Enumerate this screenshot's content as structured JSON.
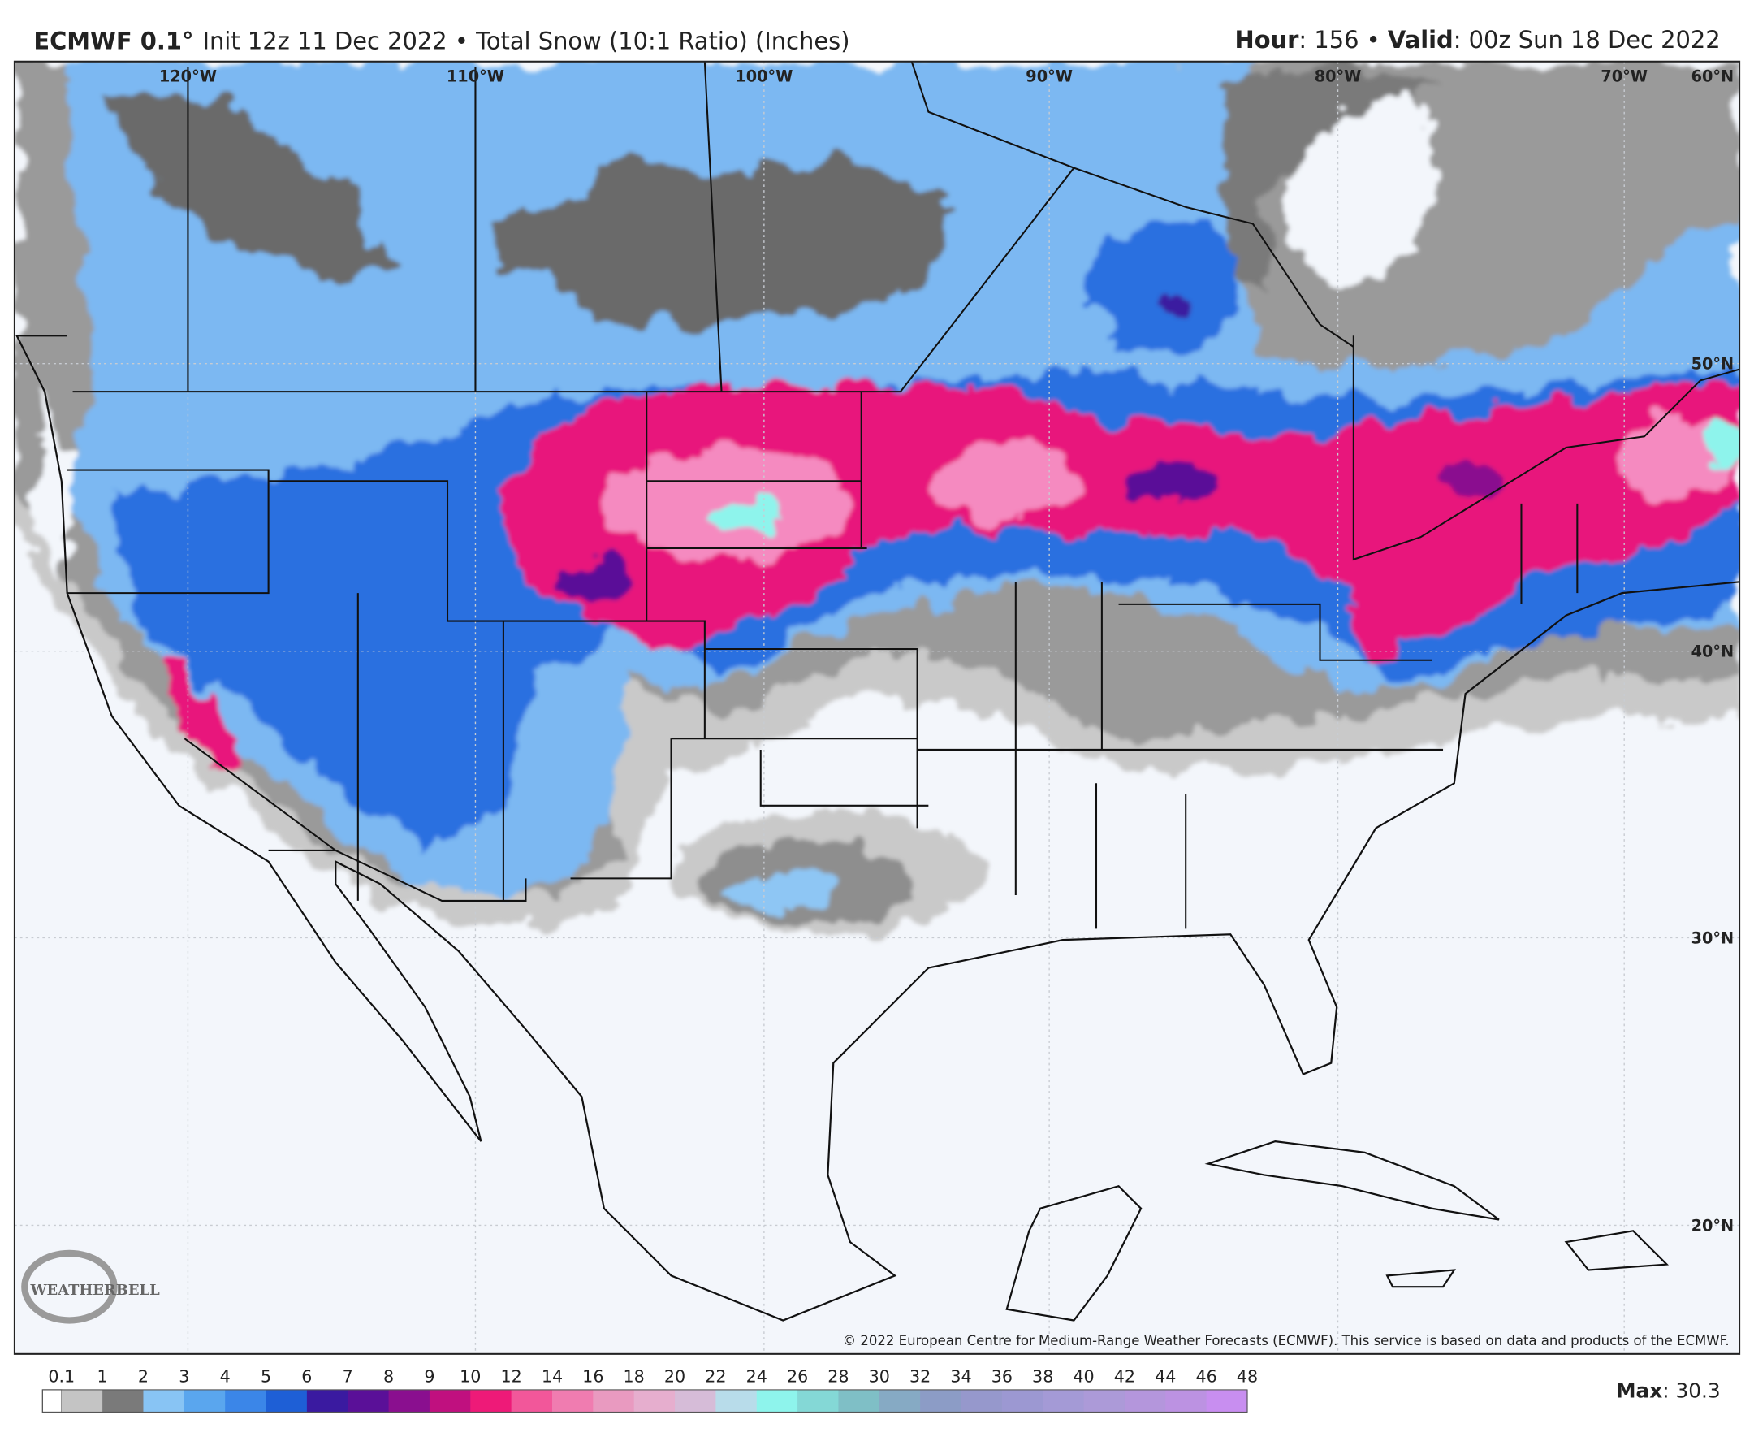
{
  "header": {
    "model": "ECMWF 0.1°",
    "description": "Init 12z 11 Dec 2022 • Total Snow (10:1 Ratio) (Inches)",
    "hour_label": "Hour",
    "hour_value": ": 156 • ",
    "valid_label": "Valid",
    "valid_value": ": 00z Sun 18 Dec 2022"
  },
  "map": {
    "longitude_labels": [
      "120°W",
      "110°W",
      "100°W",
      "90°W",
      "80°W",
      "70°W"
    ],
    "latitude_labels": [
      "60°N",
      "50°N",
      "40°N",
      "30°N",
      "20°N"
    ],
    "copyright": "© 2022 European Centre for Medium-Range Weather Forecasts (ECMWF). This service is based on data and products of the ECMWF.",
    "logo": "WEATHERBELL"
  },
  "colorbar": {
    "labels": [
      0.1,
      1,
      2,
      3,
      4,
      5,
      6,
      7,
      8,
      9,
      10,
      12,
      14,
      16,
      18,
      20,
      22,
      24,
      26,
      28,
      30,
      32,
      34,
      36,
      38,
      40,
      42,
      44,
      46,
      48
    ],
    "colors": [
      "#c4c4c4",
      "#7a7a7a",
      "#88c4f4",
      "#5aa6ee",
      "#3b86e8",
      "#1e5fd6",
      "#3a1aa0",
      "#5a1098",
      "#8a0f8f",
      "#c0107f",
      "#ee1a78",
      "#f2579a",
      "#f07cb0",
      "#e99ac0",
      "#e6aece",
      "#d6bcd8",
      "#b8dcea",
      "#8ef4ec",
      "#84d8d6",
      "#7fbfc6",
      "#86aac4",
      "#8c9cc6",
      "#9698cc",
      "#9c98d2",
      "#a49ad6",
      "#ac9ad8",
      "#b496dc",
      "#bc92e2",
      "#c88ef0"
    ]
  },
  "max": {
    "label": "Max",
    "value": ": 30.3"
  }
}
